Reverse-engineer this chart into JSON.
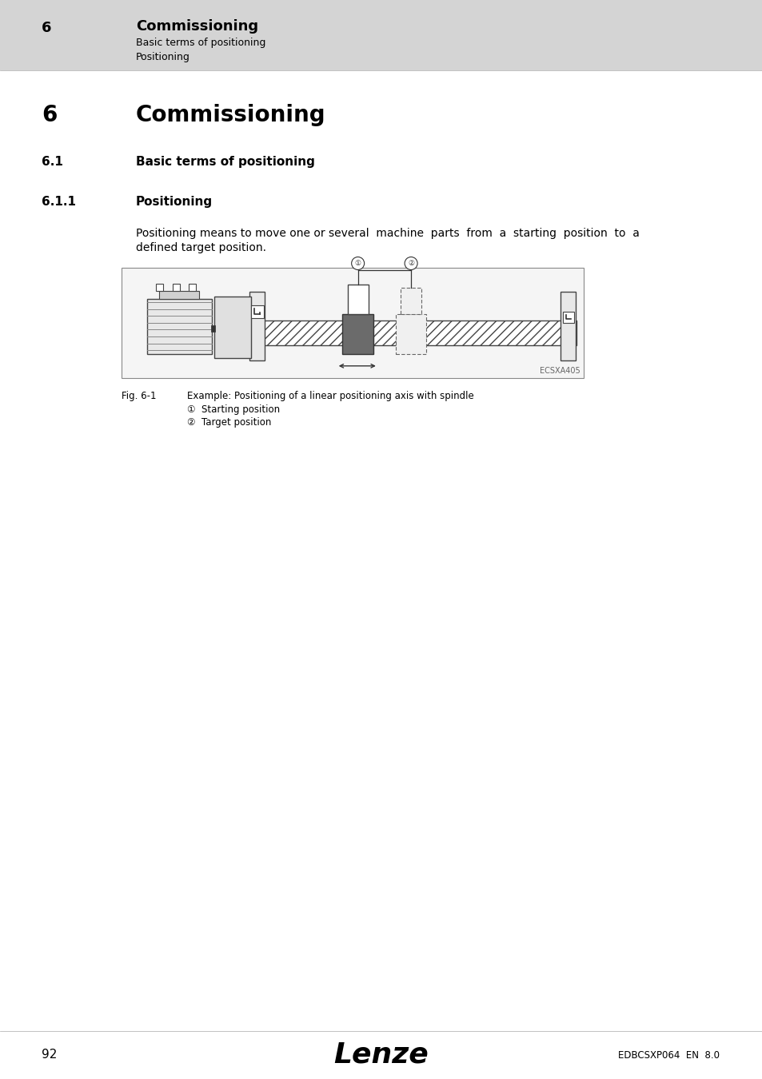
{
  "page_bg": "#ffffff",
  "header_bg": "#d4d4d4",
  "header_num": "6",
  "header_title": "Commissioning",
  "header_sub1": "Basic terms of positioning",
  "header_sub2": "Positioning",
  "section_num": "6",
  "section_title": "Commissioning",
  "sub_num": "6.1",
  "sub_title": "Basic terms of positioning",
  "subsub_num": "6.1.1",
  "subsub_title": "Positioning",
  "body_text_line1": "Positioning means to move one or several  machine  parts  from  a  starting  position  to  a",
  "body_text_line2": "defined target position.",
  "fig_label": "Fig. 6-1",
  "fig_caption": "Example: Positioning of a linear positioning axis with spindle",
  "anno1_label": "①",
  "anno1_text": "Starting position",
  "anno2_label": "②",
  "anno2_text": "Target position",
  "fig_code": "ECSXA405",
  "footer_page": "92",
  "footer_logo": "Lenze",
  "footer_code": "EDBCSXP064  EN  8.0"
}
